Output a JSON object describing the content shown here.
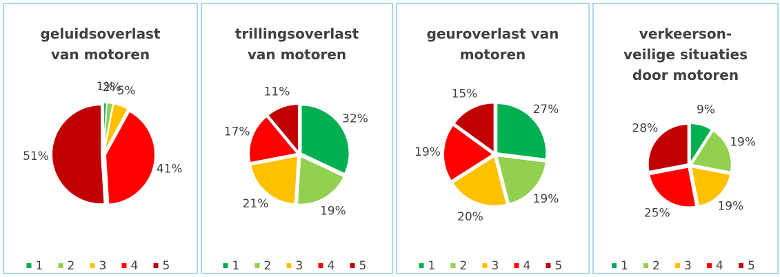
{
  "chart_data": [
    {
      "type": "pie",
      "title": "geluidsoverlast van motoren",
      "categories": [
        "1",
        "2",
        "3",
        "4",
        "5"
      ],
      "values": [
        1,
        2,
        5,
        41,
        51
      ],
      "value_labels": [
        "1%",
        "2%",
        "5%",
        "41%",
        "51%"
      ],
      "colors": [
        "#00b050",
        "#92d050",
        "#ffc000",
        "#ff0000",
        "#c00000"
      ],
      "legend": "bottom"
    },
    {
      "type": "pie",
      "title": "trillingsoverlast van motoren",
      "categories": [
        "1",
        "2",
        "3",
        "4",
        "5"
      ],
      "values": [
        32,
        19,
        21,
        17,
        11
      ],
      "value_labels": [
        "32%",
        "19%",
        "21%",
        "17%",
        "11%"
      ],
      "colors": [
        "#00b050",
        "#92d050",
        "#ffc000",
        "#ff0000",
        "#c00000"
      ],
      "legend": "bottom"
    },
    {
      "type": "pie",
      "title": "geuroverlast van motoren",
      "categories": [
        "1",
        "2",
        "3",
        "4",
        "5"
      ],
      "values": [
        27,
        19,
        20,
        19,
        15
      ],
      "value_labels": [
        "27%",
        "19%",
        "20%",
        "19%",
        "15%"
      ],
      "colors": [
        "#00b050",
        "#92d050",
        "#ffc000",
        "#ff0000",
        "#c00000"
      ],
      "legend": "bottom"
    },
    {
      "type": "pie",
      "title": "verkeerson-veilige situaties door motoren",
      "categories": [
        "1",
        "2",
        "3",
        "4",
        "5"
      ],
      "values": [
        9,
        19,
        19,
        25,
        28
      ],
      "value_labels": [
        "9%",
        "19%",
        "19%",
        "25%",
        "28%"
      ],
      "colors": [
        "#00b050",
        "#92d050",
        "#ffc000",
        "#ff0000",
        "#c00000"
      ],
      "legend": "bottom"
    }
  ]
}
